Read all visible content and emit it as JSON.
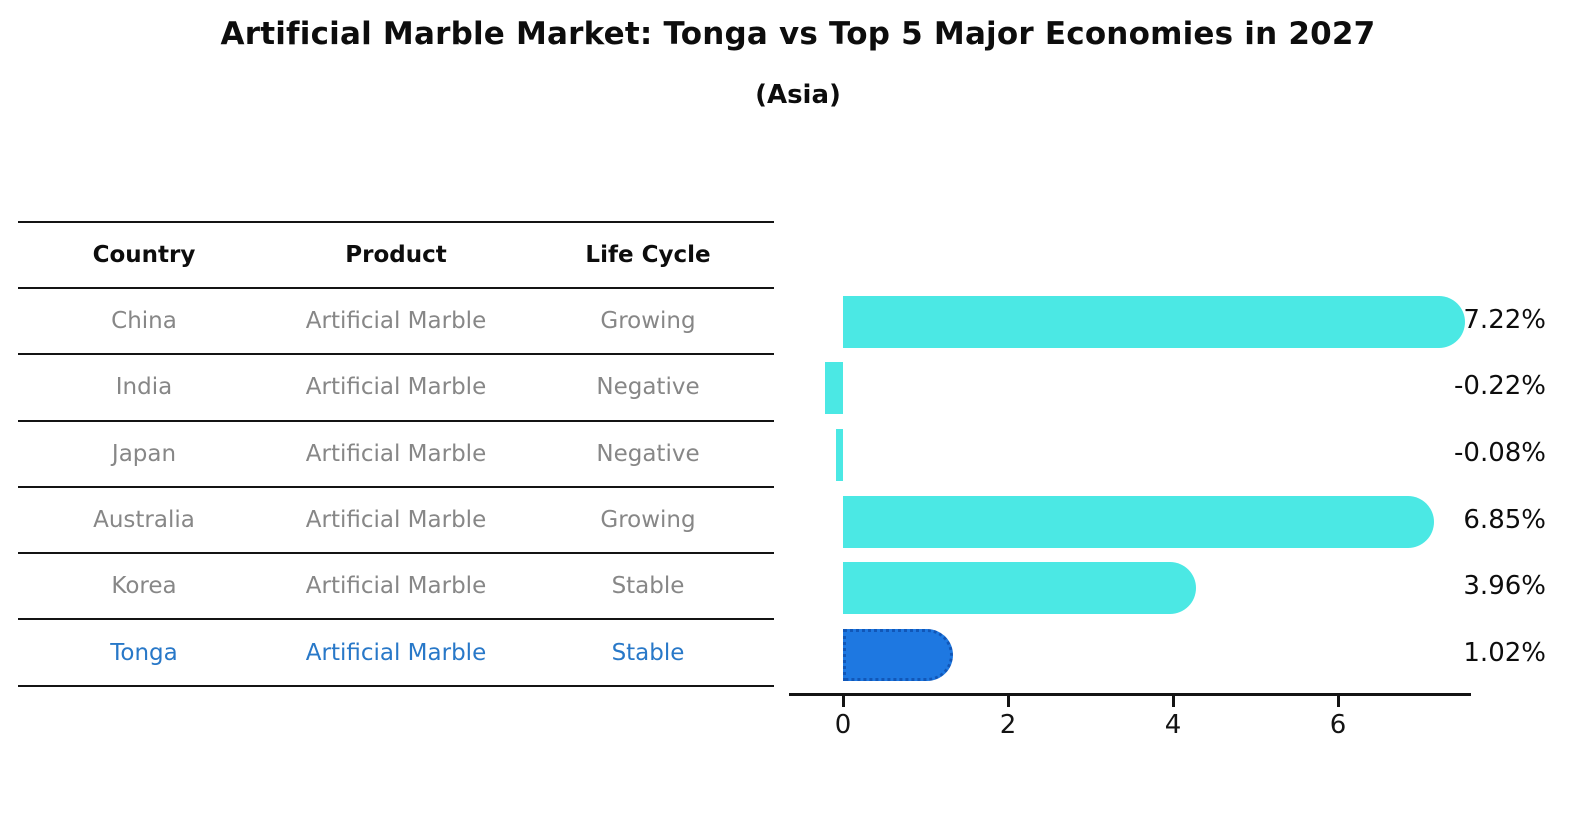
{
  "header": {
    "title": "Artificial Marble Market: Tonga vs Top 5 Major Economies in 2027",
    "subtitle": "(Asia)"
  },
  "table": {
    "columns": [
      "Country",
      "Product",
      "Life Cycle"
    ],
    "rows": [
      {
        "country": "China",
        "product": "Artificial Marble",
        "life_cycle": "Growing",
        "highlight": false
      },
      {
        "country": "India",
        "product": "Artificial Marble",
        "life_cycle": "Negative",
        "highlight": false
      },
      {
        "country": "Japan",
        "product": "Artificial Marble",
        "life_cycle": "Negative",
        "highlight": false
      },
      {
        "country": "Australia",
        "product": "Artificial Marble",
        "life_cycle": "Growing",
        "highlight": false
      },
      {
        "country": "Korea",
        "product": "Artificial Marble",
        "life_cycle": "Stable",
        "highlight": false
      },
      {
        "country": "Tonga",
        "product": "Artificial Marble",
        "life_cycle": "Stable",
        "highlight": true
      }
    ]
  },
  "chart_data": {
    "type": "bar",
    "orientation": "horizontal",
    "title": "Artificial Marble Market: Tonga vs Top 5 Major Economies in 2027",
    "subtitle": "(Asia)",
    "categories": [
      "China",
      "India",
      "Japan",
      "Australia",
      "Korea",
      "Tonga"
    ],
    "values": [
      7.22,
      -0.22,
      -0.08,
      6.85,
      3.96,
      1.02
    ],
    "value_labels": [
      "7.22%",
      "-0.22%",
      "-0.08%",
      "6.85%",
      "3.96%",
      "1.02%"
    ],
    "unit": "%",
    "x_ticks": [
      0,
      2,
      4,
      6
    ],
    "xlim": [
      -0.7,
      7.6
    ],
    "grid": false,
    "legend": false,
    "bar_color": "#4be8e4",
    "highlight_index": 5,
    "highlight_bar_color": "#1e78e1",
    "highlight_border_color": "#1157b8",
    "highlight_text_color": "#2878c8",
    "row_text_color": "#878787"
  }
}
